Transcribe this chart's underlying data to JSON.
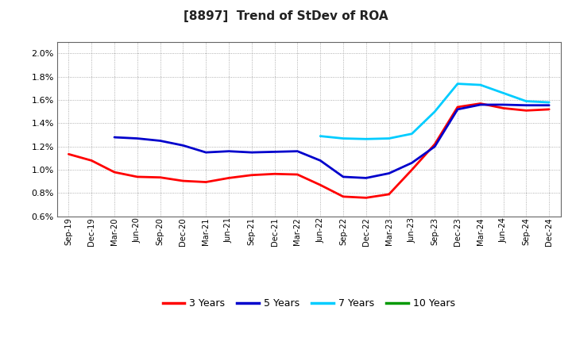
{
  "title": "[8897]  Trend of StDev of ROA",
  "title_fontsize": 11,
  "background_color": "#ffffff",
  "plot_bg_color": "#ffffff",
  "grid_color": "#999999",
  "ylim": [
    0.006,
    0.021
  ],
  "yticks": [
    0.006,
    0.008,
    0.01,
    0.012,
    0.014,
    0.016,
    0.018,
    0.02
  ],
  "x_labels": [
    "Sep-19",
    "Dec-19",
    "Mar-20",
    "Jun-20",
    "Sep-20",
    "Dec-20",
    "Mar-21",
    "Jun-21",
    "Sep-21",
    "Dec-21",
    "Mar-22",
    "Jun-22",
    "Sep-22",
    "Dec-22",
    "Mar-23",
    "Jun-23",
    "Sep-23",
    "Dec-23",
    "Mar-24",
    "Jun-24",
    "Sep-24",
    "Dec-24"
  ],
  "series_3y_color": "#ff0000",
  "series_5y_color": "#0000cc",
  "series_7y_color": "#00ccff",
  "series_10y_color": "#009900",
  "series_3y": [
    0.01135,
    0.0108,
    0.0098,
    0.0094,
    0.00935,
    0.00905,
    0.00895,
    0.0093,
    0.00955,
    0.00965,
    0.0096,
    0.0087,
    0.0077,
    0.0076,
    0.0079,
    0.01,
    0.0122,
    0.0154,
    0.0157,
    0.0153,
    0.0151,
    0.0152
  ],
  "series_5y": [
    null,
    null,
    0.0128,
    0.0127,
    0.0125,
    0.0121,
    0.0115,
    0.0116,
    0.0115,
    0.01155,
    0.0116,
    0.0108,
    0.0094,
    0.0093,
    0.0097,
    0.0106,
    0.012,
    0.0152,
    0.0156,
    0.0156,
    0.01555,
    0.01555
  ],
  "series_7y": [
    null,
    null,
    null,
    null,
    null,
    null,
    null,
    null,
    null,
    null,
    null,
    0.0129,
    0.0127,
    0.01265,
    0.0127,
    0.0131,
    0.015,
    0.0174,
    0.0173,
    0.0166,
    0.0159,
    0.0158
  ],
  "series_10y": [
    null,
    null,
    null,
    null,
    null,
    null,
    null,
    null,
    null,
    null,
    null,
    null,
    null,
    null,
    null,
    null,
    null,
    null,
    null,
    null,
    null,
    null
  ],
  "legend_labels": [
    "3 Years",
    "5 Years",
    "7 Years",
    "10 Years"
  ],
  "legend_colors": [
    "#ff0000",
    "#0000cc",
    "#00ccff",
    "#009900"
  ],
  "line_width": 2.0
}
